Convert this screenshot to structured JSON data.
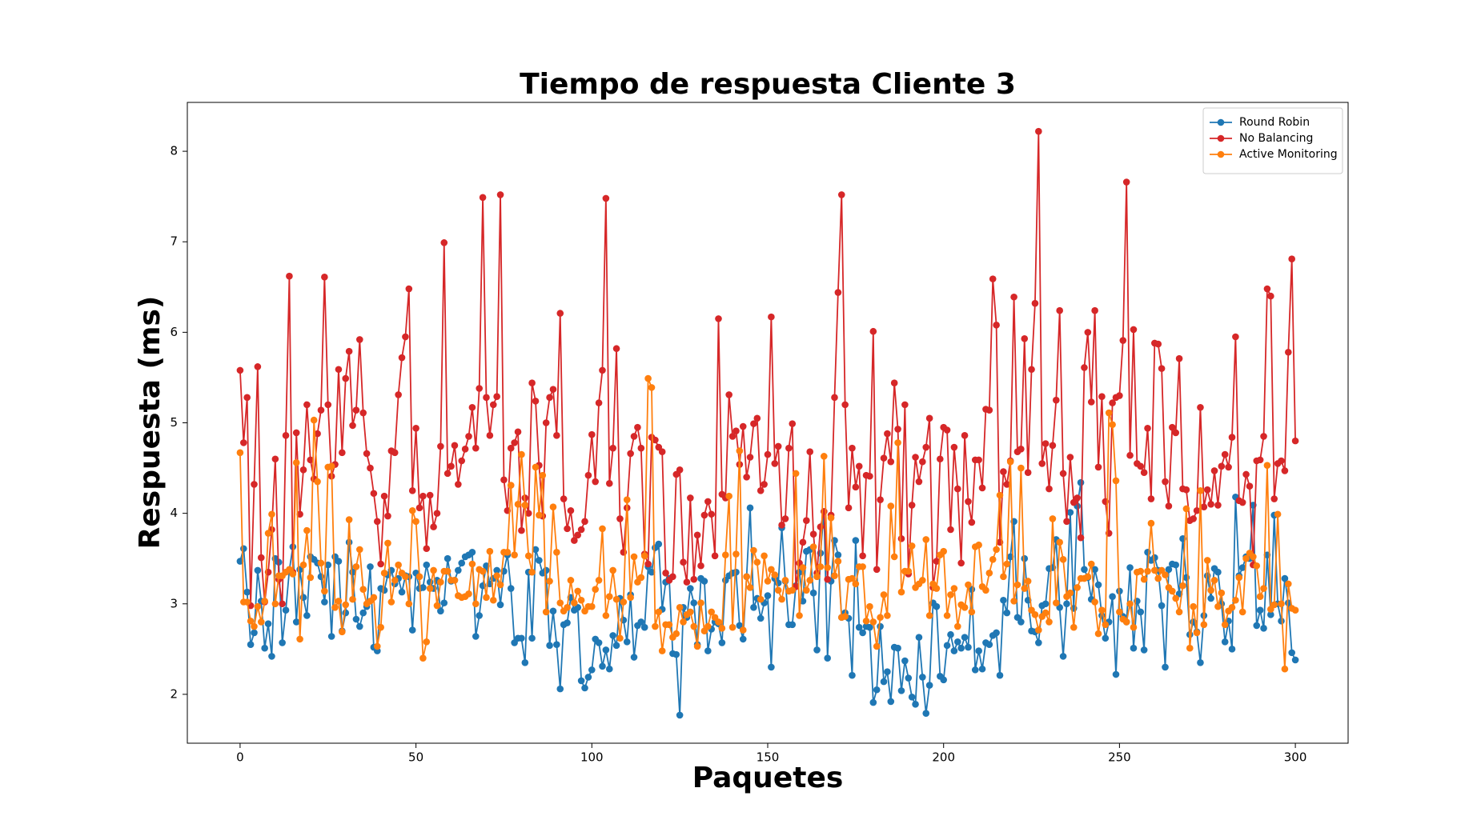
{
  "chart_data": {
    "type": "line",
    "title": "Tiempo de respuesta Cliente 3",
    "x_label": "Paquetes",
    "y_label": "Respuesta (ms)",
    "xlim": [
      -15,
      315
    ],
    "ylim": [
      1.46,
      8.54
    ],
    "xticks": [
      0,
      50,
      100,
      150,
      200,
      250,
      300
    ],
    "yticks": [
      2,
      3,
      4,
      5,
      6,
      7,
      8
    ],
    "legend": "upper right",
    "series": [
      {
        "name": "Round Robin",
        "color": "#1f77b4",
        "values": [
          3.47,
          3.61,
          3.13,
          2.55,
          2.68,
          3.37,
          3.03,
          2.51,
          2.78,
          2.42,
          3.5,
          3.46,
          2.57,
          2.93,
          3.37,
          3.63,
          2.8,
          3.38,
          3.07,
          2.87,
          3.52,
          3.49,
          3.45,
          3.3,
          3.02,
          3.43,
          2.64,
          3.52,
          3.47,
          2.7,
          2.9,
          3.68,
          3.35,
          2.83,
          2.75,
          2.9,
          2.97,
          3.41,
          2.52,
          2.48,
          3.17,
          3.15,
          3.32,
          3.37,
          3.22,
          3.28,
          3.13,
          3.31,
          3.3,
          2.71,
          3.34,
          3.17,
          3.18,
          3.43,
          3.24,
          3.17,
          3.26,
          2.92,
          3.01,
          3.5,
          3.25,
          3.26,
          3.37,
          3.45,
          3.52,
          3.54,
          3.57,
          2.64,
          2.87,
          3.2,
          3.42,
          3.22,
          3.28,
          3.37,
          2.99,
          3.36,
          3.54,
          3.17,
          2.57,
          2.62,
          2.62,
          2.35,
          3.35,
          2.62,
          3.6,
          3.48,
          3.34,
          3.37,
          2.54,
          2.92,
          2.55,
          2.06,
          2.77,
          2.79,
          3.07,
          2.93,
          2.96,
          2.15,
          2.07,
          2.19,
          2.27,
          2.61,
          2.57,
          2.31,
          2.49,
          2.28,
          2.65,
          2.54,
          3.06,
          2.82,
          2.58,
          3.1,
          2.41,
          2.76,
          2.8,
          2.74,
          3.41,
          3.35,
          3.62,
          3.66,
          2.94,
          3.24,
          3.28,
          2.45,
          2.44,
          1.77,
          2.96,
          2.85,
          3.17,
          3.01,
          2.55,
          3.28,
          3.25,
          2.48,
          2.72,
          2.8,
          2.78,
          2.57,
          3.26,
          3.31,
          3.34,
          3.35,
          2.76,
          2.61,
          3.3,
          4.06,
          2.96,
          3.06,
          2.84,
          3.01,
          3.09,
          2.3,
          3.28,
          3.23,
          3.84,
          3.25,
          2.77,
          2.77,
          3.2,
          3.35,
          3.03,
          3.58,
          3.6,
          3.12,
          2.49,
          3.56,
          4.02,
          2.4,
          3.25,
          3.7,
          3.54,
          2.85,
          2.9,
          2.84,
          2.21,
          3.7,
          2.74,
          2.68,
          2.75,
          2.74,
          1.91,
          2.05,
          2.75,
          2.14,
          2.25,
          1.92,
          2.52,
          2.51,
          2.04,
          2.37,
          2.18,
          1.97,
          1.89,
          2.63,
          2.19,
          1.79,
          2.1,
          3.01,
          2.97,
          2.2,
          2.16,
          2.54,
          2.66,
          2.48,
          2.58,
          2.51,
          2.63,
          2.52,
          3.16,
          2.27,
          2.48,
          2.28,
          2.57,
          2.55,
          2.65,
          2.68,
          2.21,
          3.04,
          2.9,
          3.52,
          3.91,
          2.85,
          2.8,
          3.5,
          3.04,
          2.7,
          2.69,
          2.57,
          2.98,
          3.0,
          3.39,
          3.4,
          3.71,
          2.96,
          2.42,
          3.0,
          4.01,
          2.95,
          4.08,
          4.34,
          3.38,
          3.29,
          3.05,
          3.38,
          3.21,
          2.87,
          2.62,
          2.8,
          3.08,
          2.22,
          3.14,
          2.86,
          2.8,
          3.4,
          2.51,
          3.03,
          2.91,
          2.49,
          3.57,
          3.48,
          3.51,
          3.37,
          2.98,
          2.3,
          3.38,
          3.44,
          3.43,
          3.11,
          3.72,
          3.29,
          2.66,
          2.8,
          2.69,
          2.35,
          2.87,
          3.31,
          3.06,
          3.39,
          3.35,
          3.0,
          2.58,
          2.81,
          2.5,
          4.18,
          3.31,
          3.4,
          3.52,
          3.5,
          4.09,
          2.76,
          2.93,
          2.73,
          3.54,
          2.88,
          3.98,
          3.0,
          2.81,
          3.28,
          3.01,
          2.46,
          2.38
        ]
      },
      {
        "name": "No Balancing",
        "color": "#d62728",
        "values": [
          5.58,
          4.78,
          5.28,
          2.98,
          4.32,
          5.62,
          3.51,
          3.02,
          3.35,
          3.82,
          4.6,
          3.27,
          3.0,
          4.86,
          6.62,
          3.35,
          4.89,
          3.99,
          4.48,
          5.2,
          4.59,
          4.38,
          4.88,
          5.14,
          6.61,
          5.2,
          4.41,
          4.54,
          5.59,
          4.67,
          5.49,
          5.79,
          4.97,
          5.14,
          5.92,
          5.11,
          4.66,
          4.5,
          4.22,
          3.91,
          3.44,
          4.19,
          3.97,
          4.69,
          4.67,
          5.31,
          5.72,
          5.95,
          6.48,
          4.25,
          4.94,
          4.06,
          4.19,
          3.61,
          4.2,
          3.85,
          4.0,
          4.74,
          6.99,
          4.44,
          4.52,
          4.75,
          4.32,
          4.58,
          4.71,
          4.85,
          5.17,
          4.72,
          5.38,
          7.49,
          5.28,
          4.86,
          5.2,
          5.29,
          7.52,
          4.37,
          4.03,
          4.72,
          4.78,
          4.9,
          3.81,
          4.17,
          4.0,
          5.44,
          5.24,
          4.53,
          3.97,
          5.0,
          5.28,
          5.37,
          4.86,
          6.21,
          4.16,
          3.83,
          4.03,
          3.7,
          3.76,
          3.82,
          3.91,
          4.42,
          4.87,
          4.35,
          5.22,
          5.58,
          7.48,
          4.33,
          4.72,
          5.82,
          3.94,
          3.57,
          4.06,
          4.66,
          4.85,
          4.95,
          4.72,
          3.55,
          3.44,
          4.84,
          4.81,
          4.73,
          4.68,
          3.34,
          3.26,
          3.3,
          4.43,
          4.48,
          3.46,
          3.24,
          4.17,
          3.27,
          3.76,
          3.42,
          3.98,
          4.13,
          3.99,
          3.53,
          6.15,
          4.21,
          4.17,
          5.31,
          4.85,
          4.91,
          4.54,
          4.96,
          4.4,
          4.62,
          4.99,
          5.05,
          4.25,
          4.32,
          4.65,
          6.17,
          4.55,
          4.74,
          3.87,
          3.94,
          4.72,
          4.99,
          3.19,
          3.45,
          3.68,
          3.92,
          4.68,
          3.77,
          3.34,
          3.85,
          4.02,
          3.27,
          3.98,
          5.28,
          6.44,
          7.52,
          5.2,
          4.06,
          4.72,
          4.29,
          4.52,
          3.53,
          4.42,
          4.41,
          6.01,
          3.38,
          4.15,
          4.61,
          4.88,
          4.57,
          5.44,
          4.93,
          3.72,
          5.2,
          3.33,
          4.09,
          4.62,
          4.35,
          4.57,
          4.73,
          5.05,
          3.18,
          3.47,
          4.6,
          4.95,
          4.92,
          3.82,
          4.73,
          4.27,
          3.45,
          4.86,
          4.13,
          3.9,
          4.59,
          4.59,
          4.28,
          5.15,
          5.14,
          6.59,
          6.08,
          3.68,
          4.46,
          4.32,
          4.58,
          6.39,
          4.68,
          4.71,
          5.93,
          4.45,
          5.59,
          6.32,
          8.22,
          4.55,
          4.77,
          4.27,
          4.75,
          5.25,
          6.24,
          4.44,
          3.91,
          4.62,
          4.12,
          4.17,
          3.73,
          5.61,
          6.0,
          5.23,
          6.24,
          4.51,
          5.29,
          4.13,
          3.78,
          5.22,
          5.28,
          5.3,
          5.91,
          7.66,
          4.64,
          6.03,
          4.55,
          4.52,
          4.45,
          4.94,
          4.16,
          5.88,
          5.87,
          5.6,
          4.35,
          4.08,
          4.95,
          4.89,
          5.71,
          4.27,
          4.26,
          3.92,
          3.94,
          4.03,
          5.17,
          4.07,
          4.26,
          4.1,
          4.47,
          4.09,
          4.52,
          4.65,
          4.51,
          4.84,
          5.95,
          4.14,
          4.12,
          4.43,
          4.3,
          3.43,
          4.58,
          4.59,
          4.85,
          6.48,
          6.4,
          4.16,
          4.55,
          4.58,
          4.47,
          5.78,
          6.81,
          4.8
        ]
      },
      {
        "name": "Active Monitoring",
        "color": "#ff7f0e",
        "values": [
          4.67,
          3.02,
          3.02,
          2.81,
          2.75,
          2.97,
          2.8,
          3.03,
          3.78,
          3.99,
          3.0,
          3.31,
          3.31,
          3.35,
          3.38,
          3.33,
          4.56,
          2.61,
          3.43,
          3.81,
          3.29,
          5.03,
          4.35,
          3.45,
          3.14,
          4.51,
          4.52,
          2.96,
          3.03,
          2.69,
          2.99,
          3.93,
          3.05,
          3.41,
          3.6,
          3.16,
          3.0,
          3.03,
          3.07,
          2.53,
          2.74,
          3.34,
          3.67,
          3.02,
          3.26,
          3.43,
          3.34,
          3.3,
          3.0,
          4.03,
          3.91,
          3.3,
          2.4,
          2.58,
          3.17,
          3.37,
          2.98,
          3.24,
          3.36,
          3.36,
          3.26,
          3.26,
          3.09,
          3.07,
          3.08,
          3.11,
          3.44,
          3.0,
          3.38,
          3.36,
          3.07,
          3.58,
          3.04,
          3.31,
          3.21,
          3.57,
          3.57,
          4.31,
          3.54,
          4.1,
          4.65,
          4.09,
          3.53,
          3.35,
          4.51,
          3.98,
          4.42,
          2.91,
          3.25,
          4.07,
          3.57,
          3.01,
          2.92,
          2.96,
          3.26,
          3.01,
          3.14,
          3.04,
          2.92,
          2.97,
          2.97,
          3.16,
          3.26,
          3.83,
          2.87,
          3.08,
          3.37,
          3.05,
          2.62,
          3.02,
          4.15,
          3.07,
          3.52,
          3.24,
          3.29,
          3.53,
          5.49,
          5.39,
          2.75,
          2.91,
          2.48,
          2.77,
          2.77,
          2.63,
          2.67,
          2.96,
          2.8,
          2.88,
          2.91,
          2.75,
          2.53,
          3.01,
          2.7,
          2.75,
          2.91,
          2.85,
          2.8,
          2.73,
          3.54,
          4.19,
          2.74,
          3.55,
          4.69,
          2.71,
          3.3,
          3.18,
          3.59,
          3.46,
          3.05,
          3.53,
          3.25,
          3.38,
          3.32,
          3.15,
          3.05,
          3.26,
          3.14,
          3.15,
          4.44,
          2.87,
          3.4,
          3.15,
          3.26,
          3.63,
          3.3,
          3.41,
          4.63,
          3.4,
          3.95,
          3.31,
          3.47,
          2.85,
          2.86,
          3.27,
          3.28,
          3.22,
          3.41,
          3.41,
          2.81,
          2.97,
          2.8,
          2.53,
          2.85,
          3.1,
          2.87,
          4.08,
          3.52,
          4.78,
          3.13,
          3.36,
          3.36,
          3.64,
          3.18,
          3.22,
          3.26,
          3.71,
          2.87,
          3.22,
          3.17,
          3.54,
          3.58,
          2.87,
          3.1,
          3.17,
          2.75,
          2.99,
          2.96,
          3.21,
          2.91,
          3.63,
          3.65,
          3.19,
          3.15,
          3.34,
          3.49,
          3.6,
          4.2,
          3.3,
          3.44,
          4.57,
          3.03,
          3.21,
          4.5,
          3.17,
          3.25,
          2.93,
          2.88,
          2.71,
          2.86,
          2.9,
          2.8,
          3.94,
          3.01,
          3.68,
          3.49,
          3.08,
          3.12,
          2.74,
          3.18,
          3.28,
          3.28,
          3.3,
          3.44,
          3.02,
          2.67,
          2.93,
          2.77,
          5.11,
          4.98,
          4.36,
          2.91,
          2.83,
          2.8,
          3.0,
          2.74,
          3.35,
          3.36,
          3.27,
          3.36,
          3.89,
          3.37,
          3.28,
          3.37,
          3.32,
          3.18,
          3.14,
          3.06,
          2.91,
          3.2,
          4.05,
          2.51,
          2.97,
          2.68,
          4.25,
          2.77,
          3.48,
          3.15,
          3.26,
          2.97,
          3.12,
          2.77,
          2.92,
          2.96,
          3.04,
          3.29,
          2.91,
          3.5,
          3.56,
          3.52,
          3.42,
          3.08,
          3.17,
          4.53,
          2.94,
          2.99,
          3.99,
          3.0,
          2.28,
          3.22,
          2.95,
          2.93
        ]
      }
    ]
  }
}
